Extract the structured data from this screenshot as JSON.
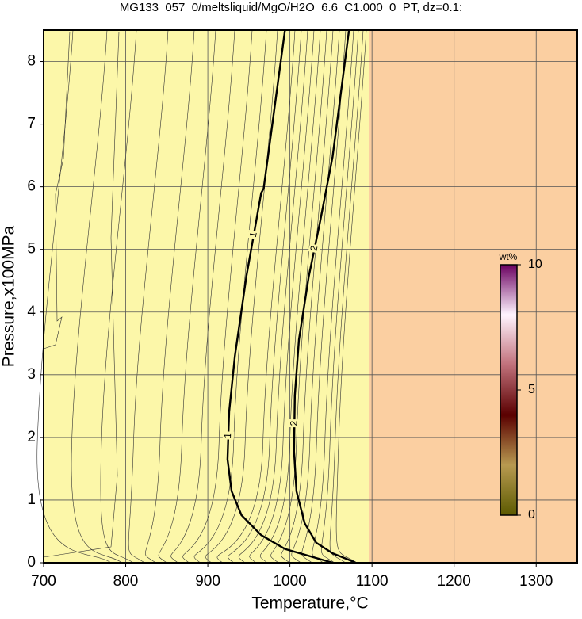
{
  "chart_data": {
    "type": "contour",
    "title": "MG133_057_0/meltsliquid/MgO/H2O_6.6_C1.000_0_PT, dz=0.1:",
    "x_label": "Temperature,°C",
    "y_label": "Pressure,x100MPa",
    "xlim": [
      700,
      1350
    ],
    "ylim": [
      0,
      8.5
    ],
    "xticks": [
      700,
      800,
      900,
      1000,
      1100,
      1200,
      1300
    ],
    "yticks": [
      0,
      1,
      2,
      3,
      4,
      5,
      6,
      7,
      8
    ],
    "grid": true,
    "series": [
      {
        "name": "1",
        "color": "#000000",
        "x": [
          994,
          968,
          965,
          947,
          933,
          926,
          924,
          929,
          941,
          965,
          994,
          1028,
          1052
        ],
        "y": [
          8.5,
          5.97,
          5.9,
          4.57,
          3.3,
          2.41,
          1.65,
          1.14,
          0.76,
          0.44,
          0.22,
          0.09,
          0
        ]
      },
      {
        "name": "2",
        "color": "#000000",
        "x": [
          1072,
          1052,
          1037,
          1023,
          1011,
          1006,
          1005,
          1008,
          1018,
          1032,
          1052,
          1071,
          1080
        ],
        "y": [
          8.5,
          6.48,
          5.46,
          4.57,
          3.56,
          2.67,
          1.78,
          1.14,
          0.63,
          0.32,
          0.15,
          0.05,
          0
        ]
      }
    ],
    "colorbar": {
      "label": "wt%",
      "lim": [
        0,
        10
      ],
      "ticks": [
        0,
        5,
        10
      ],
      "colors": [
        "#5c5a00",
        "#b89a50",
        "#5a0000",
        "#c0707a",
        "#fff4ff",
        "#6a0060"
      ]
    }
  }
}
